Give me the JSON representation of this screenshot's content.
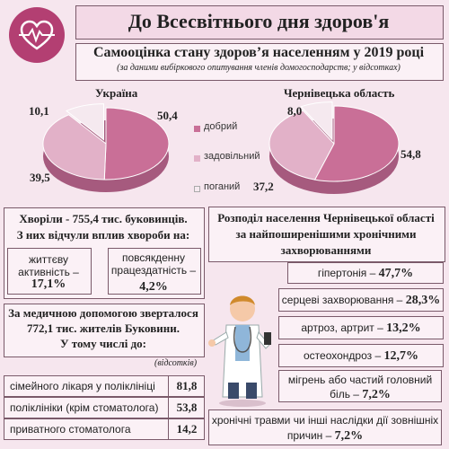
{
  "header": {
    "title": "До Всесвітнього дня здоров'я"
  },
  "subtitle": "Самооцінка стану здоров’я населенням у 2019 році",
  "subnote": "(за даними вибіркового опитування членів домогосподарств; у відсотках)",
  "colors": {
    "good": "#c96f97",
    "satisfactory": "#e2b1c8",
    "poor": "#f5e9ef",
    "accent": "#b33f72"
  },
  "logo_icon": "heart-pulse-icon",
  "legend": [
    "добрий",
    "задовільний",
    "поганий"
  ],
  "chart_data": [
    {
      "type": "pie",
      "title": "Україна",
      "categories": [
        "добрий",
        "задовільний",
        "поганий"
      ],
      "values": [
        50.4,
        39.5,
        10.1
      ],
      "labels": [
        "50,4",
        "39,5",
        "10,1"
      ]
    },
    {
      "type": "pie",
      "title": "Чернівецька область",
      "categories": [
        "добрий",
        "задовільний",
        "поганий"
      ],
      "values": [
        54.8,
        37.2,
        8.0
      ],
      "labels": [
        "54,8",
        "37,2",
        "8,0"
      ]
    }
  ],
  "illness": {
    "title_line1": "Хворіли - 755,4 тис. буковинців.",
    "title_line2": "З них відчули вплив хвороби на:",
    "left_label": "життєву активність –",
    "left_value": "17,1%",
    "right_label": "повсякденну працездатність –",
    "right_value": "4,2%"
  },
  "medical": {
    "title_line1": "За медичною допомогою зверталося",
    "title_line2": "772,1 тис. жителів Буковини.",
    "title_line3": "У тому числі до:",
    "unit": "(відсотків)",
    "rows": [
      {
        "label": "сімейного лікаря у поліклініці",
        "value": "81,8"
      },
      {
        "label": "поліклініки (крім стоматолога)",
        "value": "53,8"
      },
      {
        "label": "приватного стоматолога",
        "value": "14,2"
      }
    ]
  },
  "chronic": {
    "title_line1": "Розподіл населення Чернівецької області",
    "title_line2": "за найпоширенішими хронічними",
    "title_line3": "захворюваннями",
    "items": [
      {
        "label": "гіпертонія –",
        "value": "47,7%"
      },
      {
        "label": "серцеві захворювання –",
        "value": "28,3%"
      },
      {
        "label": "артроз, артрит –",
        "value": "13,2%"
      },
      {
        "label": "остеохондроз –",
        "value": "12,7%"
      },
      {
        "label": "мігрень або частий головний біль –",
        "value": "7,2%"
      },
      {
        "label": "хронічні травми чи інші наслідки дії зовнішніх причин –",
        "value": "7,2%"
      }
    ]
  }
}
